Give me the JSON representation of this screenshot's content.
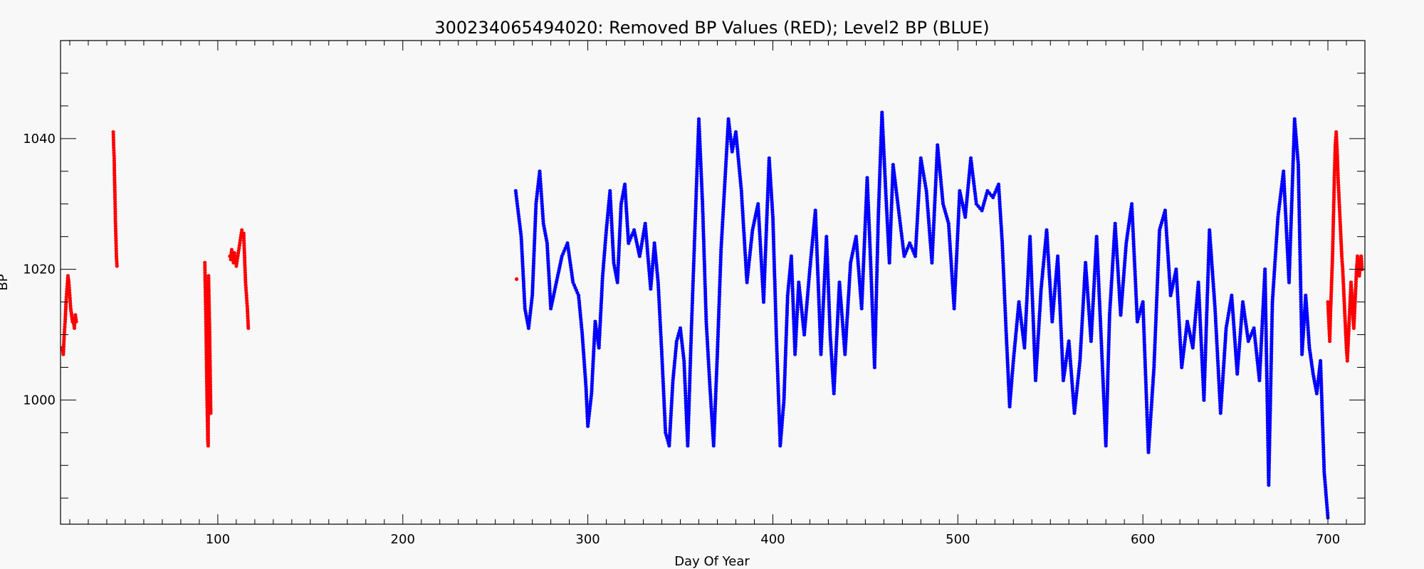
{
  "chart_data": {
    "type": "scatter",
    "title": "300234065494020: Removed BP Values (RED); Level2 BP (BLUE)",
    "xlabel": "Day Of Year",
    "ylabel": "BP",
    "xlim": [
      15,
      720
    ],
    "ylim": [
      981,
      1055
    ],
    "x_ticks": [
      100,
      200,
      300,
      400,
      500,
      600,
      700
    ],
    "y_ticks": [
      1000,
      1020,
      1040
    ],
    "grid": false,
    "series": [
      {
        "color": "#ff0000",
        "points": [
          [
            16,
            1008
          ],
          [
            16.5,
            1007
          ],
          [
            17,
            1010
          ],
          [
            17.5,
            1012
          ],
          [
            18,
            1015
          ],
          [
            18.5,
            1017
          ],
          [
            19,
            1019
          ],
          [
            19.5,
            1018
          ],
          [
            20,
            1016
          ],
          [
            20.5,
            1014
          ],
          [
            21,
            1013
          ],
          [
            21.5,
            1012
          ],
          [
            22,
            1012
          ],
          [
            22.5,
            1011
          ],
          [
            23,
            1013
          ],
          [
            23.5,
            1012
          ],
          [
            43.5,
            1041
          ],
          [
            43.7,
            1039
          ],
          [
            44,
            1037
          ],
          [
            44.2,
            1034
          ],
          [
            44.5,
            1030
          ],
          [
            44.7,
            1027
          ],
          [
            45,
            1024
          ],
          [
            45.2,
            1022
          ],
          [
            45.5,
            1020.5
          ],
          [
            93,
            1021
          ],
          [
            93.2,
            1018
          ],
          [
            93.4,
            1015
          ],
          [
            93.6,
            1012
          ],
          [
            93.8,
            1008
          ],
          [
            94,
            1004
          ],
          [
            94.2,
            1000
          ],
          [
            94.4,
            997
          ],
          [
            94.6,
            994
          ],
          [
            94.8,
            993
          ],
          [
            95,
            1019
          ],
          [
            95.2,
            1016
          ],
          [
            95.4,
            1013
          ],
          [
            95.6,
            1010
          ],
          [
            95.8,
            1006
          ],
          [
            96,
            1002
          ],
          [
            96.2,
            998
          ],
          [
            106.5,
            1022
          ],
          [
            107,
            1021.5
          ],
          [
            107.5,
            1023
          ],
          [
            108,
            1022
          ],
          [
            108.5,
            1021
          ],
          [
            109,
            1022.5
          ],
          [
            109.5,
            1021
          ],
          [
            110,
            1020.5
          ],
          [
            113,
            1026
          ],
          [
            114,
            1025.5
          ],
          [
            115,
            1018
          ],
          [
            115.5,
            1016
          ],
          [
            116,
            1014
          ],
          [
            116.5,
            1011
          ],
          [
            261.5,
            1018.5
          ],
          [
            700,
            1015
          ],
          [
            700.5,
            1012
          ],
          [
            701,
            1009
          ],
          [
            701.5,
            1014
          ],
          [
            702,
            1018
          ],
          [
            702.5,
            1022
          ],
          [
            703,
            1028
          ],
          [
            703.5,
            1034
          ],
          [
            704,
            1039
          ],
          [
            704.5,
            1041
          ],
          [
            705,
            1038
          ],
          [
            705.5,
            1034
          ],
          [
            706,
            1031
          ],
          [
            706.5,
            1028
          ],
          [
            707,
            1025
          ],
          [
            707.5,
            1022
          ],
          [
            708,
            1020
          ],
          [
            708.5,
            1017
          ],
          [
            709,
            1014
          ],
          [
            709.5,
            1011
          ],
          [
            710,
            1008
          ],
          [
            710.5,
            1006
          ],
          [
            711,
            1009
          ],
          [
            711.5,
            1012
          ],
          [
            712,
            1015
          ],
          [
            712.5,
            1018
          ],
          [
            713,
            1016
          ],
          [
            713.5,
            1013
          ],
          [
            714,
            1011
          ],
          [
            714.5,
            1014
          ],
          [
            715,
            1017
          ],
          [
            715.5,
            1020
          ],
          [
            716,
            1022
          ],
          [
            716.5,
            1021
          ],
          [
            717,
            1019
          ],
          [
            717.5,
            1021
          ],
          [
            718,
            1022
          ],
          [
            718.5,
            1020
          ]
        ]
      },
      {
        "color": "#0000ff",
        "points": [
          [
            261,
            1032
          ],
          [
            264,
            1025
          ],
          [
            266,
            1014
          ],
          [
            268,
            1011
          ],
          [
            270,
            1016
          ],
          [
            272,
            1030
          ],
          [
            274,
            1035
          ],
          [
            276,
            1027
          ],
          [
            278,
            1024
          ],
          [
            280,
            1014
          ],
          [
            283,
            1018
          ],
          [
            286,
            1022
          ],
          [
            289,
            1024
          ],
          [
            292,
            1018
          ],
          [
            295,
            1016
          ],
          [
            297,
            1010
          ],
          [
            299,
            1002
          ],
          [
            300,
            996
          ],
          [
            302,
            1001
          ],
          [
            304,
            1012
          ],
          [
            306,
            1008
          ],
          [
            308,
            1019
          ],
          [
            310,
            1026
          ],
          [
            312,
            1032
          ],
          [
            314,
            1021
          ],
          [
            316,
            1018
          ],
          [
            318,
            1030
          ],
          [
            320,
            1033
          ],
          [
            322,
            1024
          ],
          [
            325,
            1026
          ],
          [
            328,
            1022
          ],
          [
            331,
            1027
          ],
          [
            334,
            1017
          ],
          [
            336,
            1024
          ],
          [
            338,
            1018
          ],
          [
            340,
            1007
          ],
          [
            342,
            995
          ],
          [
            344,
            993
          ],
          [
            346,
            1003
          ],
          [
            348,
            1009
          ],
          [
            350,
            1011
          ],
          [
            352,
            1006
          ],
          [
            354,
            993
          ],
          [
            356,
            1011
          ],
          [
            358,
            1027
          ],
          [
            360,
            1043
          ],
          [
            362,
            1030
          ],
          [
            364,
            1012
          ],
          [
            366,
            1002
          ],
          [
            368,
            993
          ],
          [
            370,
            1007
          ],
          [
            372,
            1023
          ],
          [
            374,
            1033
          ],
          [
            376,
            1043
          ],
          [
            378,
            1038
          ],
          [
            380,
            1041
          ],
          [
            383,
            1032
          ],
          [
            386,
            1018
          ],
          [
            389,
            1026
          ],
          [
            392,
            1030
          ],
          [
            395,
            1015
          ],
          [
            398,
            1037
          ],
          [
            400,
            1028
          ],
          [
            402,
            1009
          ],
          [
            404,
            993
          ],
          [
            406,
            1000
          ],
          [
            408,
            1016
          ],
          [
            410,
            1022
          ],
          [
            412,
            1007
          ],
          [
            414,
            1018
          ],
          [
            417,
            1010
          ],
          [
            420,
            1020
          ],
          [
            423,
            1029
          ],
          [
            426,
            1007
          ],
          [
            429,
            1025
          ],
          [
            431,
            1010
          ],
          [
            433,
            1001
          ],
          [
            436,
            1018
          ],
          [
            439,
            1007
          ],
          [
            442,
            1021
          ],
          [
            445,
            1025
          ],
          [
            448,
            1014
          ],
          [
            451,
            1034
          ],
          [
            453,
            1020
          ],
          [
            455,
            1005
          ],
          [
            457,
            1028
          ],
          [
            459,
            1044
          ],
          [
            461,
            1032
          ],
          [
            463,
            1021
          ],
          [
            465,
            1036
          ],
          [
            468,
            1029
          ],
          [
            471,
            1022
          ],
          [
            474,
            1024
          ],
          [
            477,
            1022
          ],
          [
            480,
            1037
          ],
          [
            483,
            1032
          ],
          [
            486,
            1021
          ],
          [
            489,
            1039
          ],
          [
            492,
            1030
          ],
          [
            495,
            1027
          ],
          [
            498,
            1014
          ],
          [
            501,
            1032
          ],
          [
            504,
            1028
          ],
          [
            507,
            1037
          ],
          [
            510,
            1030
          ],
          [
            513,
            1029
          ],
          [
            516,
            1032
          ],
          [
            519,
            1031
          ],
          [
            522,
            1033
          ],
          [
            524,
            1024
          ],
          [
            526,
            1011
          ],
          [
            528,
            999
          ],
          [
            530,
            1006
          ],
          [
            533,
            1015
          ],
          [
            536,
            1008
          ],
          [
            539,
            1025
          ],
          [
            542,
            1003
          ],
          [
            545,
            1017
          ],
          [
            548,
            1026
          ],
          [
            551,
            1012
          ],
          [
            554,
            1022
          ],
          [
            557,
            1003
          ],
          [
            560,
            1009
          ],
          [
            563,
            998
          ],
          [
            566,
            1006
          ],
          [
            569,
            1021
          ],
          [
            572,
            1009
          ],
          [
            575,
            1025
          ],
          [
            578,
            1006
          ],
          [
            580,
            993
          ],
          [
            582,
            1013
          ],
          [
            585,
            1027
          ],
          [
            588,
            1013
          ],
          [
            591,
            1024
          ],
          [
            594,
            1030
          ],
          [
            597,
            1012
          ],
          [
            600,
            1015
          ],
          [
            603,
            992
          ],
          [
            606,
            1005
          ],
          [
            609,
            1026
          ],
          [
            612,
            1029
          ],
          [
            615,
            1016
          ],
          [
            618,
            1020
          ],
          [
            621,
            1005
          ],
          [
            624,
            1012
          ],
          [
            627,
            1008
          ],
          [
            630,
            1018
          ],
          [
            633,
            1000
          ],
          [
            636,
            1026
          ],
          [
            639,
            1014
          ],
          [
            642,
            998
          ],
          [
            645,
            1011
          ],
          [
            648,
            1016
          ],
          [
            651,
            1004
          ],
          [
            654,
            1015
          ],
          [
            657,
            1009
          ],
          [
            660,
            1011
          ],
          [
            663,
            1003
          ],
          [
            666,
            1020
          ],
          [
            668,
            987
          ],
          [
            670,
            1015
          ],
          [
            673,
            1028
          ],
          [
            676,
            1035
          ],
          [
            679,
            1018
          ],
          [
            682,
            1043
          ],
          [
            684,
            1036
          ],
          [
            686,
            1007
          ],
          [
            688,
            1016
          ],
          [
            690,
            1008
          ],
          [
            692,
            1004
          ],
          [
            694,
            1001
          ],
          [
            696,
            1006
          ],
          [
            698,
            989
          ],
          [
            700,
            982
          ]
        ]
      }
    ]
  }
}
